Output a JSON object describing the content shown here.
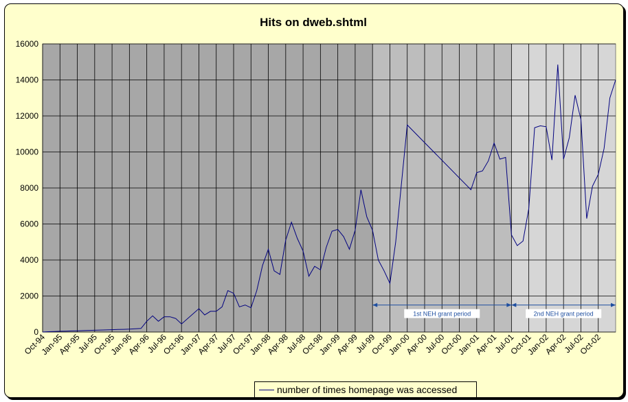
{
  "chart_data": {
    "type": "line",
    "title": "Hits on dweb.shtml",
    "xlabel": "",
    "ylabel": "",
    "ylim": [
      0,
      16000
    ],
    "yticks": [
      0,
      2000,
      4000,
      6000,
      8000,
      10000,
      12000,
      14000,
      16000
    ],
    "x_start": "Oct-94",
    "x_tick_labels": [
      "Oct-94",
      "Jan-95",
      "Apr-95",
      "Jul-95",
      "Oct-95",
      "Jan-96",
      "Apr-96",
      "Jul-96",
      "Oct-96",
      "Jan-97",
      "Apr-97",
      "Jul-97",
      "Oct-97",
      "Jan-98",
      "Apr-98",
      "Jul-98",
      "Oct-98",
      "Jan-99",
      "Apr-99",
      "Jul-99",
      "Oct-99",
      "Jan-00",
      "Apr-00",
      "Jul-00",
      "Oct-00",
      "Jan-01",
      "Apr-01",
      "Jul-01",
      "Oct-01",
      "Jan-02",
      "Apr-02",
      "Jul-02",
      "Oct-02"
    ],
    "grid": true,
    "legend_position": "bottom",
    "series": [
      {
        "name": "number of times homepage was accessed",
        "color": "#00007f",
        "points": [
          [
            "Oct-94",
            0
          ],
          [
            "Nov-94",
            20
          ],
          [
            "Dec-94",
            30
          ],
          [
            "Jan-95",
            40
          ],
          [
            "Feb-95",
            50
          ],
          [
            "Mar-95",
            60
          ],
          [
            "Apr-95",
            70
          ],
          [
            "May-95",
            80
          ],
          [
            "Jun-95",
            90
          ],
          [
            "Jul-95",
            100
          ],
          [
            "Aug-95",
            110
          ],
          [
            "Sep-95",
            120
          ],
          [
            "Oct-95",
            130
          ],
          [
            "Nov-95",
            140
          ],
          [
            "Dec-95",
            150
          ],
          [
            "Jan-96",
            160
          ],
          [
            "Feb-96",
            180
          ],
          [
            "Mar-96",
            200
          ],
          [
            "Apr-96",
            600
          ],
          [
            "May-96",
            900
          ],
          [
            "Jun-96",
            600
          ],
          [
            "Jul-96",
            850
          ],
          [
            "Aug-96",
            850
          ],
          [
            "Sep-96",
            750
          ],
          [
            "Oct-96",
            450
          ],
          [
            "Jan-97",
            1300
          ],
          [
            "Feb-97",
            950
          ],
          [
            "Mar-97",
            1150
          ],
          [
            "Apr-97",
            1150
          ],
          [
            "May-97",
            1400
          ],
          [
            "Jun-97",
            2300
          ],
          [
            "Jul-97",
            2150
          ],
          [
            "Aug-97",
            1400
          ],
          [
            "Sep-97",
            1500
          ],
          [
            "Oct-97",
            1350
          ],
          [
            "Nov-97",
            2300
          ],
          [
            "Dec-97",
            3700
          ],
          [
            "Jan-98",
            4600
          ],
          [
            "Feb-98",
            3400
          ],
          [
            "Mar-98",
            3200
          ],
          [
            "Apr-98",
            5100
          ],
          [
            "May-98",
            6100
          ],
          [
            "Jun-98",
            5200
          ],
          [
            "Jul-98",
            4500
          ],
          [
            "Aug-98",
            3100
          ],
          [
            "Sep-98",
            3650
          ],
          [
            "Oct-98",
            3450
          ],
          [
            "Nov-98",
            4700
          ],
          [
            "Dec-98",
            5600
          ],
          [
            "Jan-99",
            5700
          ],
          [
            "Feb-99",
            5300
          ],
          [
            "Mar-99",
            4600
          ],
          [
            "Apr-99",
            5650
          ],
          [
            "May-99",
            7900
          ],
          [
            "Jun-99",
            6400
          ],
          [
            "Jul-99",
            5650
          ],
          [
            "Aug-99",
            4000
          ],
          [
            "Sep-99",
            3400
          ],
          [
            "Oct-99",
            2700
          ],
          [
            "Nov-99",
            5000
          ],
          [
            "Jan-00",
            11500
          ],
          [
            "Dec-00",
            7900
          ],
          [
            "Jan-01",
            8850
          ],
          [
            "Feb-01",
            8950
          ],
          [
            "Mar-01",
            9500
          ],
          [
            "Apr-01",
            10500
          ],
          [
            "May-01",
            9600
          ],
          [
            "Jun-01",
            9700
          ],
          [
            "Jul-01",
            5400
          ],
          [
            "Aug-01",
            4800
          ],
          [
            "Sep-01",
            5050
          ],
          [
            "Oct-01",
            6850
          ],
          [
            "Nov-01",
            11350
          ],
          [
            "Dec-01",
            11450
          ],
          [
            "Jan-02",
            11400
          ],
          [
            "Feb-02",
            9550
          ],
          [
            "Mar-02",
            14850
          ],
          [
            "Apr-02",
            9600
          ],
          [
            "May-02",
            10800
          ],
          [
            "Jun-02",
            13150
          ],
          [
            "Jul-02",
            11800
          ],
          [
            "Aug-02",
            6300
          ],
          [
            "Sep-02",
            8100
          ],
          [
            "Oct-02",
            8750
          ],
          [
            "Nov-02",
            10200
          ],
          [
            "Dec-02",
            13000
          ],
          [
            "Jan-03",
            14000
          ]
        ]
      }
    ],
    "periods": [
      {
        "label": "1st NEH grant period",
        "start": "Jul-99",
        "end": "Jul-01",
        "level": 1500,
        "color": "#1f4fa0"
      },
      {
        "label": "2nd NEH grant period",
        "start": "Jul-01",
        "end": "Jan-03",
        "level": 1500,
        "color": "#1f4fa0"
      }
    ],
    "shading": [
      {
        "start": "Oct-94",
        "end": "Jul-99",
        "color": "#a7a7a7"
      },
      {
        "start": "Jul-99",
        "end": "Jul-01",
        "color": "#bdbdbd"
      },
      {
        "start": "Jul-01",
        "end": "Jan-03",
        "color": "#d6d6d6"
      }
    ]
  }
}
